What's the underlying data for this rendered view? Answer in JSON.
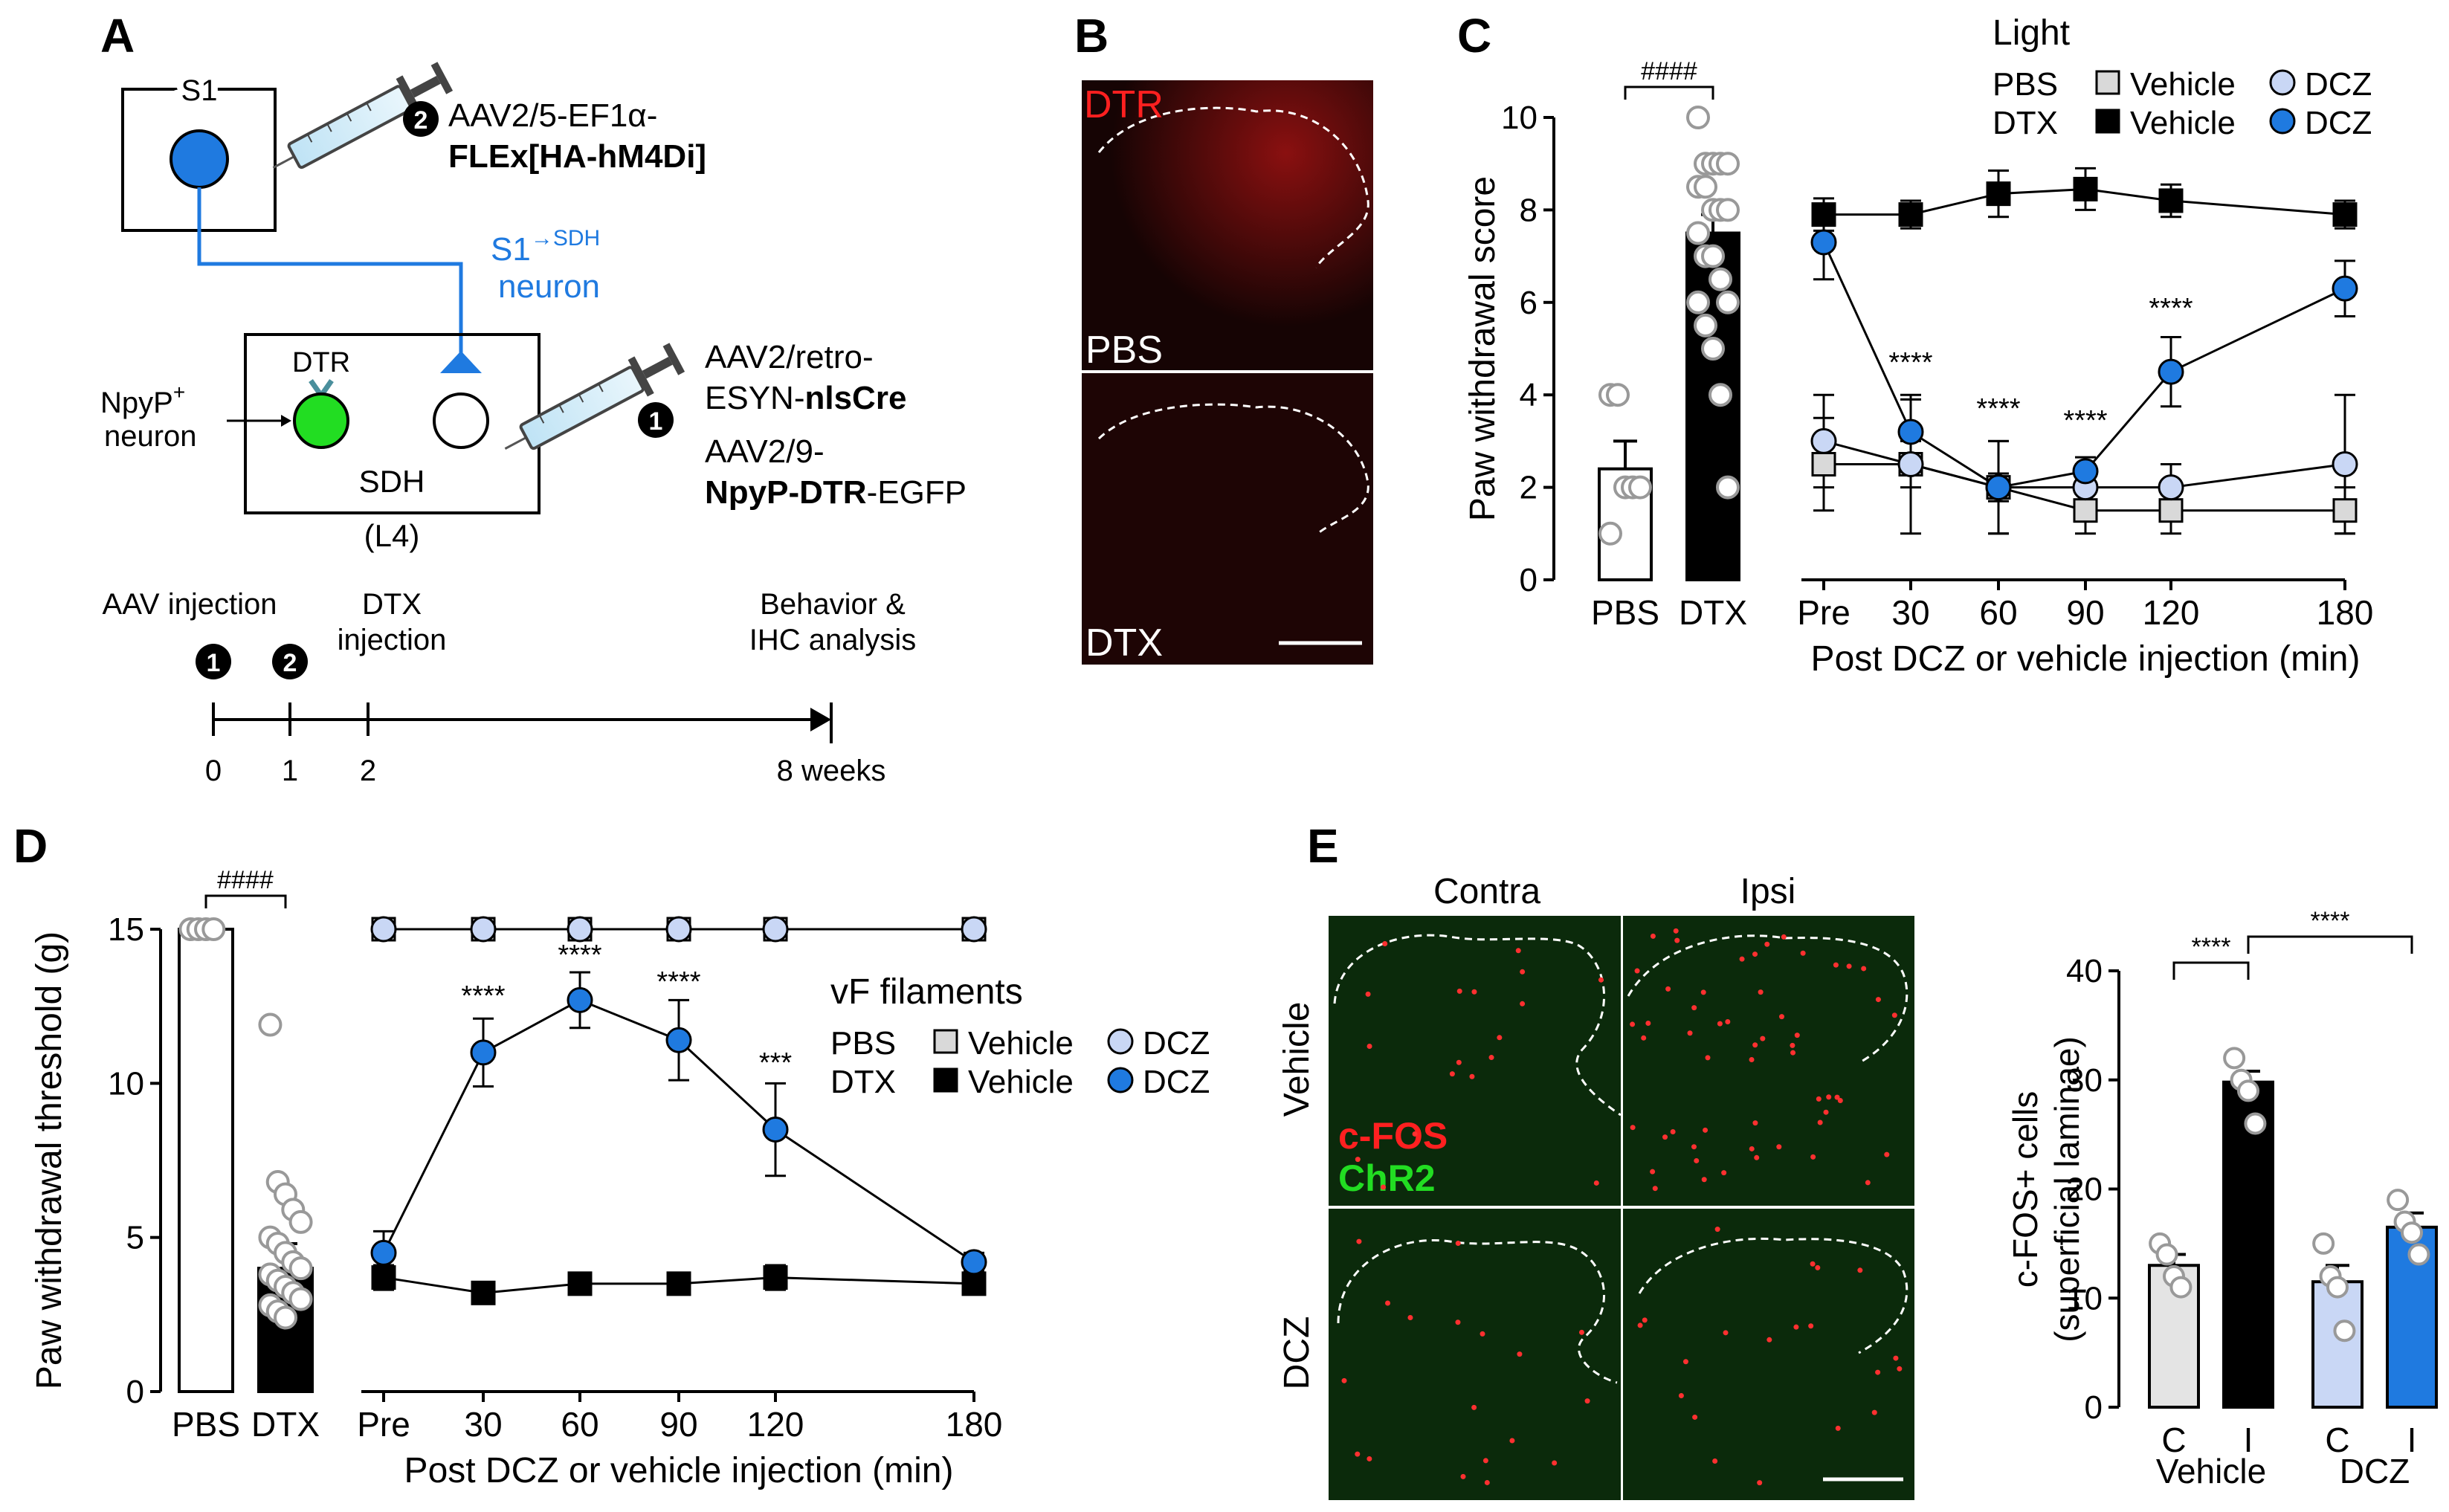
{
  "panel_labels": {
    "a": "A",
    "b": "B",
    "c": "C",
    "d": "D",
    "e": "E"
  },
  "panel_a": {
    "s1_label": "S1",
    "step2": "2",
    "virus2_line1": "AAV2/5-EF1α-",
    "virus2_line2": "FLEx[HA-hM4Di]",
    "s1_sdh_main": "S1",
    "s1_sdh_super": "→SDH",
    "neuron_label": "neuron",
    "dtr_label": "DTR",
    "npy_label": "NpyP",
    "npy_super": "+",
    "npy_neuron": "neuron",
    "sdh_line1": "SDH",
    "sdh_line2": "(L4)",
    "step1": "1",
    "virus1_line1": "AAV2/retro-",
    "virus1_line2a": "ESYN-",
    "virus1_line2b": "nlsCre",
    "virus1_line3": "AAV2/9-",
    "virus1_line4a": "NpyP-DTR",
    "virus1_line4b": "-EGFP",
    "timeline": {
      "aav_injection": "AAV injection",
      "dtx_line1": "DTX",
      "dtx_line2": "injection",
      "behavior_line1": "Behavior &",
      "behavior_line2": "IHC analysis",
      "ticks": [
        "0",
        "1",
        "2",
        "8 weeks"
      ]
    }
  },
  "panel_b": {
    "top_label": "DTR",
    "pbs_label": "PBS",
    "dtx_label": "DTX"
  },
  "panel_e_images": {
    "col_contra": "Contra",
    "col_ipsi": "Ipsi",
    "row_vehicle": "Vehicle",
    "row_dcz": "DCZ",
    "cfos_label": "c-FOS",
    "chr2_label": "ChR2"
  },
  "chart_data": [
    {
      "id": "C-left",
      "type": "bar",
      "ylabel": "Paw withdrawal score",
      "ylim": [
        0,
        10
      ],
      "yticks": [
        "0",
        "2",
        "4",
        "6",
        "8",
        "10"
      ],
      "categories": [
        "PBS",
        "DTX"
      ],
      "values": [
        2.4,
        7.5
      ],
      "errors": [
        0.6,
        0.4
      ],
      "points": [
        [
          4,
          4,
          2,
          2,
          2,
          1
        ],
        [
          10,
          9,
          9,
          9,
          9,
          8.5,
          8.5,
          8,
          8,
          8,
          7.5,
          7,
          7,
          6.5,
          6,
          6,
          5.5,
          5,
          4,
          2
        ]
      ],
      "annotation": "####"
    },
    {
      "id": "C-right",
      "type": "line",
      "xlabel": "Post DCZ or vehicle injection (min)",
      "x": [
        "Pre",
        "30",
        "60",
        "90",
        "120",
        "180"
      ],
      "ylim": [
        0,
        10
      ],
      "legend_title": "Light",
      "legend_rows": [
        "PBS",
        "DTX"
      ],
      "series": [
        {
          "name": "Vehicle",
          "group": "PBS",
          "values": [
            2.5,
            2.5,
            2.0,
            1.5,
            1.5,
            1.5
          ],
          "errors": [
            1.0,
            1.5,
            1.0,
            0.5,
            0.5,
            0.5
          ],
          "color": "#d9d9d9",
          "marker": "square"
        },
        {
          "name": "DCZ",
          "group": "PBS",
          "values": [
            3.0,
            2.5,
            2.0,
            2.0,
            2.0,
            2.5
          ],
          "errors": [
            1.0,
            0.5,
            1.0,
            0.5,
            0.5,
            1.5
          ],
          "color": "#c9d7f5",
          "marker": "circle"
        },
        {
          "name": "Vehicle",
          "group": "DTX",
          "values": [
            7.9,
            7.9,
            8.35,
            8.45,
            8.2,
            7.9
          ],
          "errors": [
            0.35,
            0.3,
            0.5,
            0.45,
            0.35,
            0.3
          ],
          "color": "#000000",
          "marker": "square"
        },
        {
          "name": "DCZ",
          "group": "DTX",
          "values": [
            7.3,
            3.2,
            2.0,
            2.35,
            4.5,
            6.3
          ],
          "errors": [
            0.8,
            0.7,
            0.3,
            0.3,
            0.75,
            0.6
          ],
          "color": "#1f7ae0",
          "marker": "circle"
        }
      ],
      "annotations": [
        "****",
        "****",
        "****",
        "****"
      ]
    },
    {
      "id": "D-left",
      "type": "bar",
      "ylabel": "Paw withdrawal threshold (g)",
      "ylim": [
        0,
        15
      ],
      "yticks": [
        "0",
        "5",
        "10",
        "15"
      ],
      "categories": [
        "PBS",
        "DTX"
      ],
      "values": [
        15,
        4.0
      ],
      "errors": [
        0,
        0.8
      ],
      "points": [
        [
          15,
          15,
          15,
          15
        ],
        [
          11.9,
          6.8,
          6.4,
          5.9,
          5.5,
          5.0,
          4.8,
          4.5,
          4.2,
          4.0,
          3.8,
          3.6,
          3.4,
          3.2,
          3.0,
          2.8,
          2.6,
          2.4
        ]
      ],
      "annotation": "####"
    },
    {
      "id": "D-right",
      "type": "line",
      "xlabel": "Post DCZ or vehicle injection (min)",
      "x": [
        "Pre",
        "30",
        "60",
        "90",
        "120",
        "180"
      ],
      "ylim": [
        0,
        15
      ],
      "legend_title": "vF filaments",
      "legend_rows": [
        "PBS",
        "DTX"
      ],
      "series": [
        {
          "name": "Vehicle",
          "group": "PBS",
          "values": [
            15,
            15,
            15,
            15,
            15,
            15
          ],
          "errors": [
            0,
            0,
            0,
            0,
            0,
            0
          ],
          "color": "#d9d9d9",
          "marker": "square"
        },
        {
          "name": "DCZ",
          "group": "PBS",
          "values": [
            15,
            15,
            15,
            15,
            15,
            15
          ],
          "errors": [
            0,
            0,
            0,
            0,
            0,
            0
          ],
          "color": "#c9d7f5",
          "marker": "circle"
        },
        {
          "name": "Vehicle",
          "group": "DTX",
          "values": [
            3.7,
            3.2,
            3.5,
            3.5,
            3.7,
            3.5
          ],
          "errors": [
            0.4,
            0.2,
            0.2,
            0.2,
            0.4,
            0.2
          ],
          "color": "#000000",
          "marker": "square"
        },
        {
          "name": "DCZ",
          "group": "DTX",
          "values": [
            4.5,
            11.0,
            12.7,
            11.4,
            8.5,
            4.2
          ],
          "errors": [
            0.7,
            1.1,
            0.9,
            1.3,
            1.5,
            0.3
          ],
          "color": "#1f7ae0",
          "marker": "circle"
        }
      ],
      "annotations": [
        "****",
        "****",
        "****",
        "***"
      ]
    },
    {
      "id": "E-bars",
      "type": "bar",
      "ylabel_line1": "c-FOS",
      "ylabel_sup": "+",
      "ylabel_line1_rest": " cells",
      "ylabel_line2": "(superficial laminae)",
      "ylim": [
        0,
        40
      ],
      "yticks": [
        "0",
        "10",
        "20",
        "30",
        "40"
      ],
      "categories": [
        "C",
        "I",
        "C",
        "I"
      ],
      "groups": [
        "Vehicle",
        "DCZ"
      ],
      "values": [
        13.0,
        29.8,
        11.5,
        16.5
      ],
      "errors": [
        1.0,
        1.0,
        1.5,
        1.3
      ],
      "colors": [
        "#e4e4e4",
        "#000000",
        "#c9d7f5",
        "#1f7ae0"
      ],
      "points": [
        [
          15,
          14,
          12,
          11
        ],
        [
          32,
          30,
          29,
          26
        ],
        [
          15,
          12,
          11,
          7
        ],
        [
          19,
          17,
          16,
          14
        ]
      ],
      "annotations": [
        "****",
        "****"
      ]
    }
  ]
}
